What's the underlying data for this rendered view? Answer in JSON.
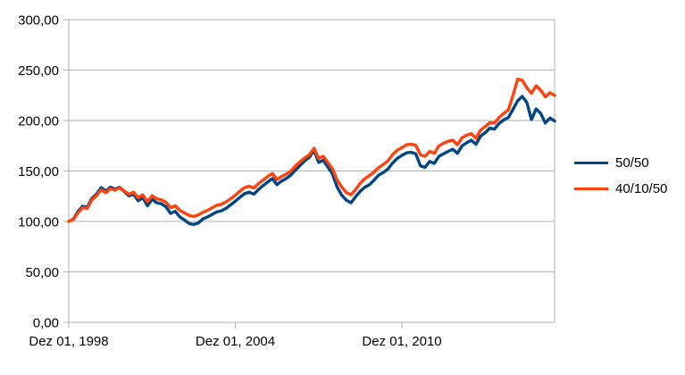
{
  "chart_data": {
    "type": "line",
    "title": "",
    "legend_position": "right",
    "grid": "horizontal",
    "colors": {
      "background": "#ffffff",
      "gridline": "#b2b2b2",
      "axis": "#b2b2b2",
      "text": "#000000"
    },
    "x_axis": {
      "unit": "months since Dez 01, 1998",
      "range_months": [
        0,
        210
      ],
      "ticks": [
        {
          "month": 0,
          "label": "Dez 01, 1998"
        },
        {
          "month": 72,
          "label": "Dez 01, 2004"
        },
        {
          "month": 144,
          "label": "Dez 01, 2010"
        }
      ]
    },
    "y_axis": {
      "ylim": [
        0,
        300
      ],
      "ticks": [
        {
          "value": 300,
          "label": "300,00"
        },
        {
          "value": 250,
          "label": "250,00"
        },
        {
          "value": 200,
          "label": "200,00"
        },
        {
          "value": 150,
          "label": "150,00"
        },
        {
          "value": 100,
          "label": "100,00"
        },
        {
          "value": 50,
          "label": "50,00"
        },
        {
          "value": 0,
          "label": "0,00"
        }
      ]
    },
    "x_months": [
      0,
      2,
      4,
      6,
      8,
      10,
      12,
      14,
      16,
      18,
      20,
      22,
      24,
      26,
      28,
      30,
      32,
      34,
      36,
      38,
      40,
      42,
      44,
      46,
      48,
      50,
      52,
      54,
      56,
      58,
      60,
      62,
      64,
      66,
      68,
      70,
      72,
      74,
      76,
      78,
      80,
      82,
      84,
      86,
      88,
      90,
      92,
      94,
      96,
      98,
      100,
      102,
      104,
      106,
      108,
      110,
      112,
      114,
      116,
      118,
      120,
      122,
      124,
      126,
      128,
      130,
      132,
      134,
      136,
      138,
      140,
      142,
      144,
      146,
      148,
      150,
      152,
      154,
      156,
      158,
      160,
      162,
      164,
      166,
      168,
      170,
      172,
      174,
      176,
      178,
      180,
      182,
      184,
      186,
      188,
      190,
      192,
      194,
      196,
      198,
      200,
      202,
      204,
      206,
      208,
      210
    ],
    "series": [
      {
        "name": "50/50",
        "color": "#004586",
        "values": [
          100,
          102.5,
          110,
          115,
          114,
          123,
          127,
          133.5,
          130,
          134,
          132,
          134,
          129.5,
          125.5,
          127,
          120.5,
          123.5,
          115.5,
          122,
          118.5,
          117.5,
          114.5,
          108,
          110,
          104.5,
          101.5,
          98,
          97,
          98.5,
          102.5,
          104.5,
          107,
          109.5,
          110.5,
          113,
          116.5,
          120,
          124,
          127.5,
          129,
          127,
          131.5,
          135.5,
          139,
          142.5,
          136.5,
          140,
          142.5,
          146,
          151,
          155.5,
          160,
          163.5,
          170.5,
          158.5,
          160.5,
          154,
          147,
          134,
          126,
          121,
          118.5,
          124.5,
          130,
          134,
          136.5,
          141,
          146,
          148.5,
          152,
          158,
          162.5,
          165.5,
          168,
          168.5,
          167,
          155,
          153.5,
          159.5,
          157.5,
          164.5,
          167,
          169.5,
          171.5,
          167.5,
          175,
          178,
          180.5,
          176.5,
          184.5,
          188,
          192.5,
          191.5,
          197,
          200.5,
          203,
          211,
          219.5,
          224,
          218,
          201,
          211.5,
          207,
          197.5,
          202.5,
          199.5
        ]
      },
      {
        "name": "40/10/50",
        "color": "#FF420E",
        "values": [
          100,
          102,
          108.5,
          113.5,
          113,
          121.5,
          125.5,
          131.5,
          128.5,
          132.5,
          131,
          133.5,
          130,
          127,
          129,
          123.5,
          126.5,
          119.5,
          125.5,
          122.5,
          121.5,
          119,
          113.5,
          115.5,
          111,
          108.5,
          106,
          105,
          106.5,
          109,
          111,
          113.5,
          116,
          117,
          119.5,
          122.5,
          126,
          130,
          133.5,
          135,
          133,
          137.5,
          141,
          144.5,
          147.5,
          141.5,
          144.5,
          147,
          150,
          155,
          159,
          163,
          166,
          172.5,
          162.5,
          164.5,
          158.5,
          152,
          141,
          134,
          128.5,
          126.5,
          131.5,
          138,
          142.5,
          145.5,
          149,
          153.5,
          156.5,
          160,
          166.5,
          170.5,
          173,
          176,
          176.5,
          175.5,
          166,
          164.5,
          169.5,
          167.5,
          175,
          177.5,
          179.5,
          180.5,
          176,
          183,
          185.5,
          187,
          182.5,
          190.5,
          194,
          198,
          197.5,
          203,
          207,
          210.5,
          225,
          241,
          240,
          232.5,
          227,
          234.5,
          230,
          223.5,
          227.5,
          225
        ]
      }
    ]
  }
}
